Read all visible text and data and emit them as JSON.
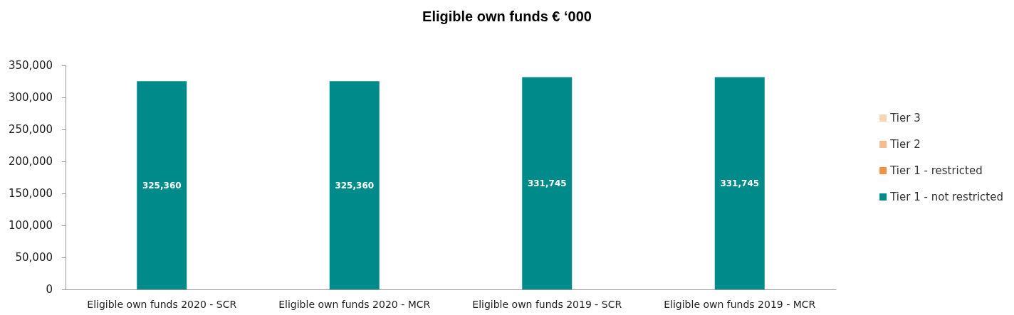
{
  "chart_data": {
    "type": "bar",
    "title": "Eligible own funds € ‘000",
    "stacked": true,
    "categories": [
      "Eligible own funds 2020 - SCR",
      "Eligible own funds 2020 - MCR",
      "Eligible own funds 2019 - SCR",
      "Eligible own funds 2019 - MCR"
    ],
    "series": [
      {
        "name": "Tier 1 - not restricted",
        "color": "#008a8a",
        "values": [
          325360,
          325360,
          331745,
          331745
        ],
        "value_labels": [
          "325,360",
          "325,360",
          "331,745",
          "331,745"
        ]
      },
      {
        "name": "Tier 1 - restricted",
        "color": "#f39244",
        "values": [
          0,
          0,
          0,
          0
        ]
      },
      {
        "name": "Tier 2",
        "color": "#f5bc8c",
        "values": [
          0,
          0,
          0,
          0
        ]
      },
      {
        "name": "Tier 3",
        "color": "#f7d4b4",
        "values": [
          0,
          0,
          0,
          0
        ]
      }
    ],
    "ylim": [
      0,
      350000
    ],
    "yticks": [
      0,
      {
        "value": 50000,
        "label": "50,000"
      },
      {
        "value": 100000,
        "label": "100,000"
      },
      {
        "value": 150000,
        "label": "150,000"
      },
      {
        "value": 200000,
        "label": "200,000"
      },
      {
        "value": 250000,
        "label": "250,000"
      },
      {
        "value": 300000,
        "label": "300,000"
      },
      {
        "value": 350000,
        "label": "350,000"
      }
    ],
    "grid": false,
    "legend": "right"
  }
}
